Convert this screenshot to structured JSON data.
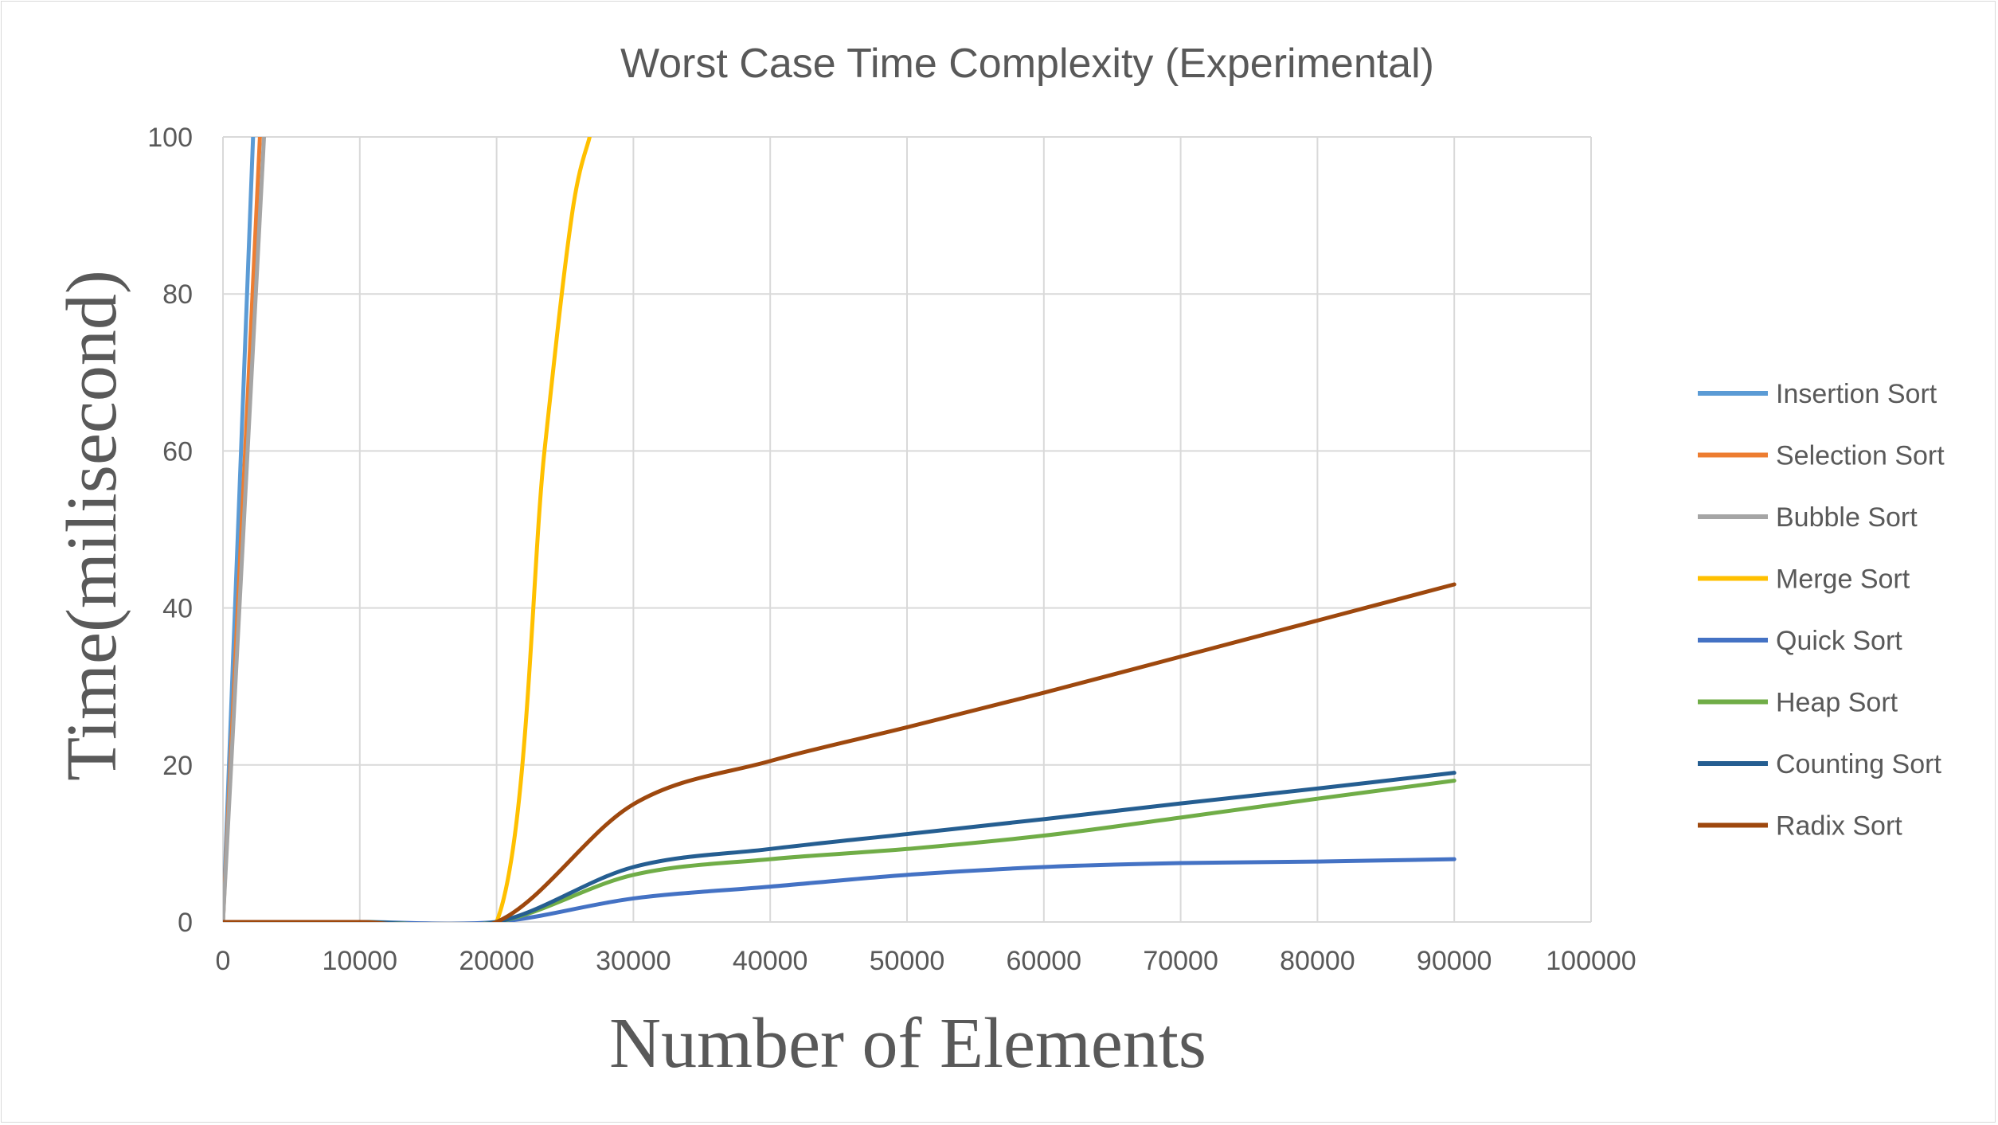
{
  "chart_data": {
    "type": "line",
    "title": "Worst Case Time Complexity (Experimental)",
    "xlabel": "Number of Elements",
    "ylabel": "Time(milisecond)",
    "xlim": [
      0,
      100000
    ],
    "ylim": [
      0,
      100
    ],
    "x_ticks": [
      "0",
      "10000",
      "20000",
      "30000",
      "40000",
      "50000",
      "60000",
      "70000",
      "80000",
      "90000",
      "100000"
    ],
    "y_ticks": [
      "0",
      "20",
      "40",
      "60",
      "80",
      "100"
    ],
    "grid": true,
    "legend_position": "right",
    "x": [
      0,
      10000,
      20000,
      30000,
      40000,
      50000,
      60000,
      70000,
      80000,
      90000
    ],
    "series": [
      {
        "name": "Insertion Sort",
        "color": "#5b9bd5",
        "points": [
          [
            0,
            0
          ],
          [
            2200,
            100
          ]
        ]
      },
      {
        "name": "Selection Sort",
        "color": "#ed7d31",
        "points": [
          [
            0,
            0
          ],
          [
            2700,
            100
          ]
        ]
      },
      {
        "name": "Bubble Sort",
        "color": "#a5a5a5",
        "points": [
          [
            0,
            0
          ],
          [
            3000,
            100
          ]
        ]
      },
      {
        "name": "Merge Sort",
        "color": "#ffc000",
        "points": [
          [
            0,
            0
          ],
          [
            10000,
            0
          ],
          [
            20000,
            0
          ],
          [
            23500,
            60
          ],
          [
            25500,
            90
          ],
          [
            26800,
            100
          ]
        ]
      },
      {
        "name": "Quick Sort",
        "color": "#4472c4",
        "points": [
          [
            0,
            0
          ],
          [
            10000,
            0
          ],
          [
            20000,
            0
          ],
          [
            30000,
            3
          ],
          [
            40000,
            4.5
          ],
          [
            50000,
            6
          ],
          [
            60000,
            7
          ],
          [
            70000,
            7.5
          ],
          [
            80000,
            7.7
          ],
          [
            90000,
            8
          ]
        ]
      },
      {
        "name": "Heap Sort",
        "color": "#70ad47",
        "points": [
          [
            0,
            0
          ],
          [
            10000,
            0
          ],
          [
            20000,
            0
          ],
          [
            30000,
            6
          ],
          [
            40000,
            8
          ],
          [
            50000,
            9.3
          ],
          [
            60000,
            11
          ],
          [
            70000,
            13.3
          ],
          [
            80000,
            15.7
          ],
          [
            90000,
            18
          ]
        ]
      },
      {
        "name": "Counting Sort",
        "color": "#255e91",
        "points": [
          [
            0,
            0
          ],
          [
            10000,
            0
          ],
          [
            20000,
            0
          ],
          [
            30000,
            7
          ],
          [
            40000,
            9.3
          ],
          [
            50000,
            11.2
          ],
          [
            60000,
            13.1
          ],
          [
            70000,
            15.1
          ],
          [
            80000,
            17
          ],
          [
            90000,
            19
          ]
        ]
      },
      {
        "name": "Radix Sort",
        "color": "#9e480e",
        "points": [
          [
            0,
            0
          ],
          [
            10000,
            0
          ],
          [
            20000,
            0
          ],
          [
            30000,
            15
          ],
          [
            40000,
            20.5
          ],
          [
            50000,
            24.8
          ],
          [
            60000,
            29.2
          ],
          [
            70000,
            33.8
          ],
          [
            80000,
            38.4
          ],
          [
            90000,
            43
          ]
        ]
      }
    ]
  }
}
